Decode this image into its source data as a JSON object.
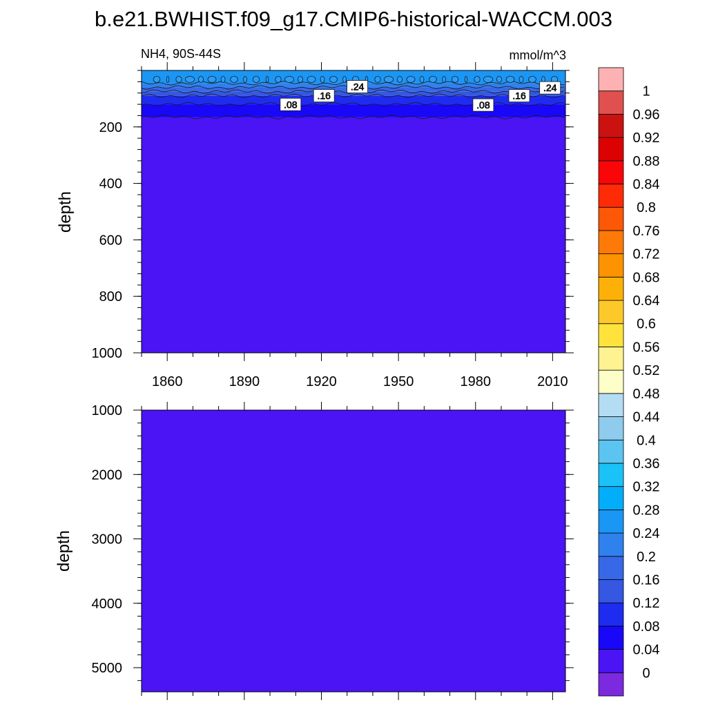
{
  "title": "b.e21.BWHIST.f09_g17.CMIP6-historical-WACCM.003",
  "chart_data": [
    {
      "type": "heatmap",
      "panel": "upper",
      "left_label": "NH4, 90S-44S",
      "right_label": "mmol/m^3",
      "ylabel": "depth",
      "xlabel": "",
      "xlim": [
        1850,
        2015
      ],
      "ylim": [
        0,
        1000
      ],
      "y_inverted": true,
      "x_ticks": [
        1860,
        1890,
        1920,
        1950,
        1980,
        2010
      ],
      "x_tick_labels": [
        "1860",
        "1890",
        "1920",
        "1950",
        "1980",
        "2010"
      ],
      "y_ticks": [
        200,
        400,
        600,
        800,
        1000
      ],
      "y_tick_labels": [
        "200",
        "400",
        "600",
        "800",
        "1000"
      ],
      "depth_bands": [
        {
          "from": 0,
          "to": 45,
          "value": 0.26
        },
        {
          "from": 45,
          "to": 60,
          "value": 0.22
        },
        {
          "from": 60,
          "to": 75,
          "value": 0.18
        },
        {
          "from": 75,
          "to": 90,
          "value": 0.14
        },
        {
          "from": 90,
          "to": 120,
          "value": 0.1
        },
        {
          "from": 120,
          "to": 165,
          "value": 0.06
        },
        {
          "from": 165,
          "to": 1000,
          "value": 0.02
        }
      ],
      "contour_labels": [
        {
          "text": ".08",
          "year": 1908,
          "depth": 123
        },
        {
          "text": ".16",
          "year": 1921,
          "depth": 92
        },
        {
          "text": ".24",
          "year": 1934,
          "depth": 60
        },
        {
          "text": ".08",
          "year": 1983,
          "depth": 125
        },
        {
          "text": ".16",
          "year": 1997,
          "depth": 92
        },
        {
          "text": ".24",
          "year": 2009,
          "depth": 64
        }
      ]
    },
    {
      "type": "heatmap",
      "panel": "lower",
      "ylabel": "depth",
      "xlim": [
        1850,
        2015
      ],
      "ylim": [
        1000,
        5375
      ],
      "y_inverted": true,
      "y_ticks": [
        1000,
        2000,
        3000,
        4000,
        5000
      ],
      "y_tick_labels": [
        "1000",
        "2000",
        "3000",
        "4000",
        "5000"
      ],
      "depth_bands": [
        {
          "from": 1000,
          "to": 5375,
          "value": 0.02
        }
      ]
    }
  ],
  "colorbar": {
    "labels": [
      "0",
      "0.04",
      "0.08",
      "0.12",
      "0.16",
      "0.2",
      "0.24",
      "0.28",
      "0.32",
      "0.36",
      "0.4",
      "0.44",
      "0.48",
      "0.52",
      "0.56",
      "0.6",
      "0.64",
      "0.68",
      "0.72",
      "0.76",
      "0.8",
      "0.84",
      "0.88",
      "0.92",
      "0.96",
      "1"
    ],
    "colors": [
      "#7b2ae0",
      "#4a14f5",
      "#1808f7",
      "#1e2cf0",
      "#3557e2",
      "#3668e8",
      "#2f82ee",
      "#1a96f5",
      "#02aefa",
      "#1bc2f7",
      "#5bc4f1",
      "#8ecbec",
      "#b4dcf2",
      "#fefec8",
      "#fef291",
      "#ffe33c",
      "#fdc92a",
      "#fdb108",
      "#fd9300",
      "#fd7a09",
      "#fd5807",
      "#fe2b06",
      "#fa0508",
      "#dc0202",
      "#cc1210",
      "#e0504f",
      "#fdb1b2"
    ]
  }
}
